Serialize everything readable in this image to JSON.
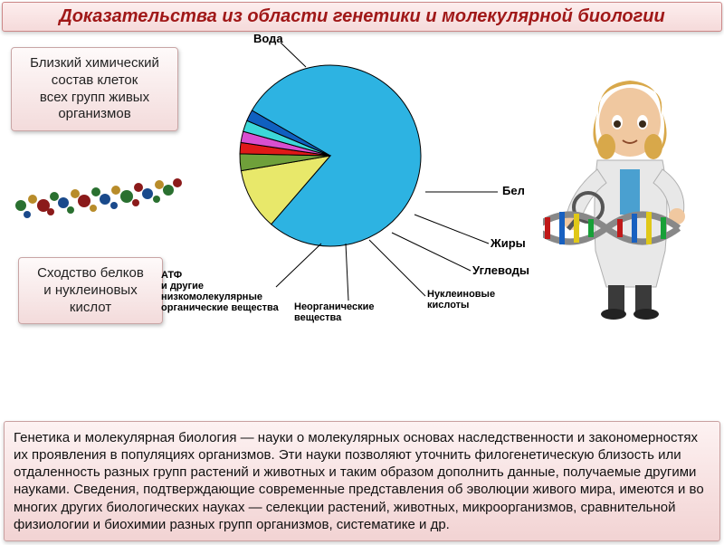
{
  "title": "Доказательства из области генетики и молекулярной биологии",
  "box1": {
    "line1": "Близкий химический",
    "line2": "состав клеток",
    "line3": "всех групп живых",
    "line4": "организмов"
  },
  "box2": {
    "line1": "Сходство белков",
    "line2": "и нуклеиновых",
    "line3": "кислот"
  },
  "chart": {
    "type": "pie",
    "slices": [
      {
        "label": "Вода",
        "value": 78,
        "color": "#2db3e2"
      },
      {
        "label": "Бел",
        "value": 11,
        "color": "#e8e86a"
      },
      {
        "label": "Жиры",
        "value": 3,
        "color": "#6fa03a"
      },
      {
        "label": "Углеводы",
        "value": 2,
        "color": "#e01818"
      },
      {
        "label": "Нуклеиновые кислоты",
        "value": 2,
        "color": "#d94fd0"
      },
      {
        "label": "Неорганические вещества",
        "value": 2,
        "color": "#3cd8d8"
      },
      {
        "label": "АТФ и другие низкомолекулярные органические вещества",
        "value": 2,
        "color": "#1060c0"
      }
    ],
    "label_water": "Вода",
    "label_bel": "Бел",
    "label_fat": "Жиры",
    "label_carb": "Углеводы",
    "label_nucl1": "Нуклеиновые",
    "label_nucl2": "кислоты",
    "label_inorg1": "Неорганические",
    "label_inorg2": "вещества",
    "label_atp1": "АТФ",
    "label_atp2": "и другие",
    "label_atp3": "низкомолекулярные",
    "label_atp4": "органические вещества",
    "border_color": "#000000",
    "leader_color": "#000000"
  },
  "main_text": "Генетика и молекулярная биология — науки о молекулярных основах наследственности и закономерностях их проявления в популяциях организмов. Эти науки позволяют уточнить филогенетическую близость или отдаленность разных групп растений и животных и таким образом дополнить данные, получаемые другими науками. Сведения, подтверждающие современные представления об эволюции живого мира, имеются и во многих других биологических науках — селекции растений, животных, микроорганизмов, сравнительной физиологии и биохимии разных групп организмов, систематике и др.",
  "colors": {
    "title_text": "#a01818",
    "box_bg_top": "#fdf2f2",
    "box_bg_bottom": "#f2d3d3",
    "box_border": "#c9a0a0"
  }
}
